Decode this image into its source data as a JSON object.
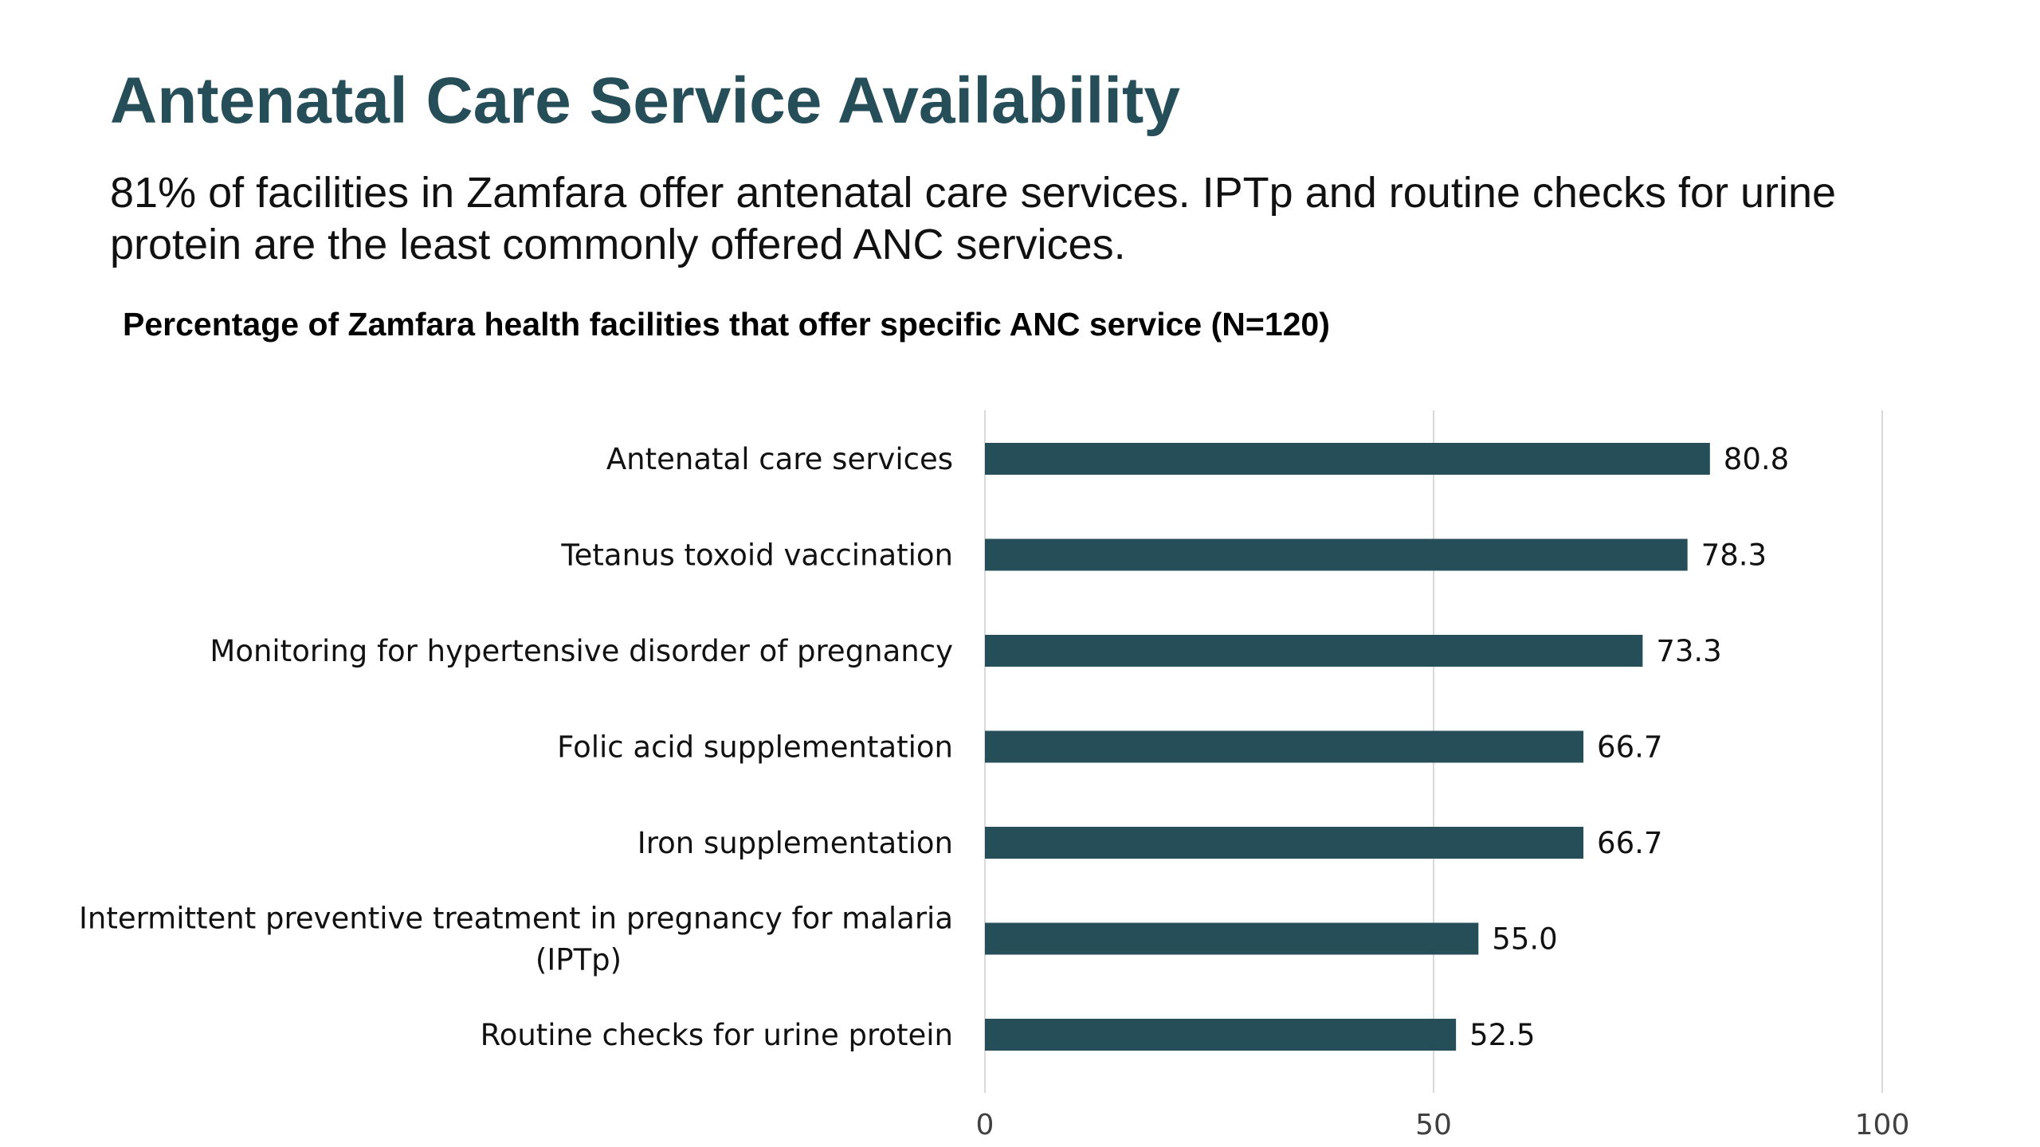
{
  "slide": {
    "title": "Antenatal Care Service Availability",
    "subtitle": "81% of facilities in Zamfara offer antenatal care services. IPTp and routine checks for urine protein are the least commonly offered ANC services."
  },
  "colors": {
    "title": "#254e58",
    "bar": "#254e58",
    "gridline": "#d9d9d9",
    "text": "#111111"
  },
  "chart_data": {
    "type": "bar",
    "orientation": "horizontal",
    "title": "Percentage of Zamfara health facilities that offer specific ANC service (N=120)",
    "categories": [
      [
        "Antenatal care services"
      ],
      [
        "Tetanus toxoid vaccination"
      ],
      [
        "Monitoring for hypertensive disorder of pregnancy"
      ],
      [
        "Folic acid supplementation"
      ],
      [
        "Iron supplementation"
      ],
      [
        "Intermittent preventive treatment in pregnancy for malaria",
        "(IPTp)"
      ],
      [
        "Routine checks for urine protein"
      ]
    ],
    "values": [
      80.8,
      78.3,
      73.3,
      66.7,
      66.7,
      55.0,
      52.5
    ],
    "value_labels": [
      "80.8",
      "78.3",
      "73.3",
      "66.7",
      "66.7",
      "55.0",
      "52.5"
    ],
    "xlim": [
      0,
      100
    ],
    "xticks": [
      0,
      50,
      100
    ],
    "xtick_labels": [
      "0",
      "50",
      "100"
    ],
    "grid": true,
    "legend": "none"
  }
}
